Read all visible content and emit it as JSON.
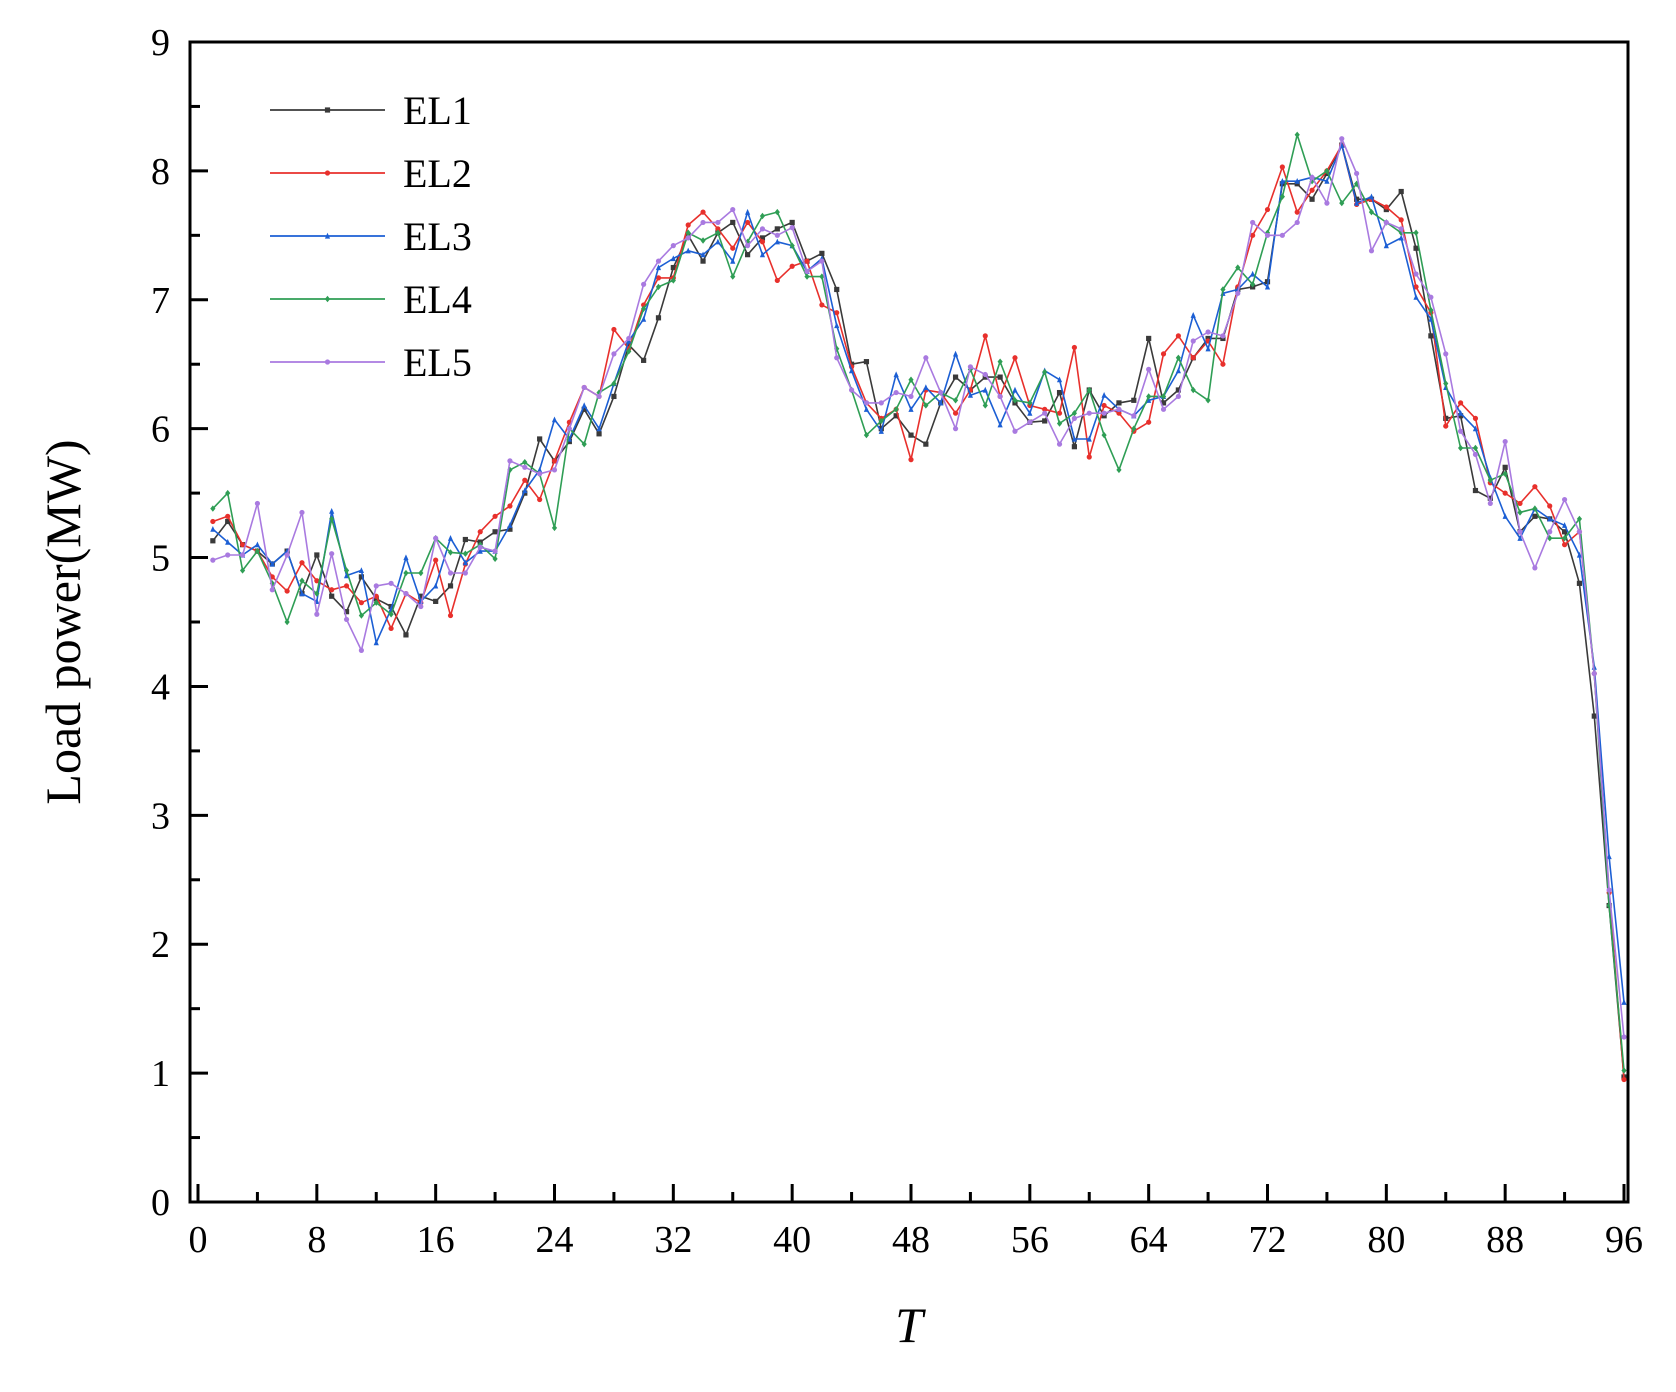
{
  "chart_data": {
    "type": "line",
    "title": "",
    "xlabel": "T",
    "ylabel": "Load power(MW)",
    "xlim": [
      0,
      96
    ],
    "ylim": [
      0,
      9
    ],
    "xticks": [
      0,
      8,
      16,
      24,
      32,
      40,
      48,
      56,
      64,
      72,
      80,
      88,
      96
    ],
    "yticks": [
      0,
      1,
      2,
      3,
      4,
      5,
      6,
      7,
      8,
      9
    ],
    "grid": false,
    "legend_position": "top-left",
    "x": [
      1,
      2,
      3,
      4,
      5,
      6,
      7,
      8,
      9,
      10,
      11,
      12,
      13,
      14,
      15,
      16,
      17,
      18,
      19,
      20,
      21,
      22,
      23,
      24,
      25,
      26,
      27,
      28,
      29,
      30,
      31,
      32,
      33,
      34,
      35,
      36,
      37,
      38,
      39,
      40,
      41,
      42,
      43,
      44,
      45,
      46,
      47,
      48,
      49,
      50,
      51,
      52,
      53,
      54,
      55,
      56,
      57,
      58,
      59,
      60,
      61,
      62,
      63,
      64,
      65,
      66,
      67,
      68,
      69,
      70,
      71,
      72,
      73,
      74,
      75,
      76,
      77,
      78,
      79,
      80,
      81,
      82,
      83,
      84,
      85,
      86,
      87,
      88,
      89,
      90,
      91,
      92,
      93,
      94,
      95,
      96
    ],
    "series": [
      {
        "name": "EL1",
        "color": "#3a3a3a",
        "marker": "square",
        "values": [
          5.13,
          5.28,
          5.1,
          5.05,
          4.95,
          5.05,
          4.72,
          5.02,
          4.7,
          4.58,
          4.85,
          4.68,
          4.62,
          4.4,
          4.7,
          4.66,
          4.78,
          5.14,
          5.12,
          5.2,
          5.22,
          5.5,
          5.92,
          5.75,
          5.9,
          6.15,
          5.96,
          6.25,
          6.65,
          6.53,
          6.86,
          7.25,
          7.5,
          7.3,
          7.52,
          7.6,
          7.35,
          7.48,
          7.55,
          7.6,
          7.3,
          7.36,
          7.08,
          6.5,
          6.52,
          6.0,
          6.1,
          5.95,
          5.88,
          6.2,
          6.4,
          6.3,
          6.4,
          6.4,
          6.2,
          6.05,
          6.06,
          6.28,
          5.86,
          6.3,
          6.1,
          6.2,
          6.22,
          6.7,
          6.2,
          6.3,
          6.55,
          6.7,
          6.7,
          7.08,
          7.1,
          7.14,
          7.9,
          7.9,
          7.78,
          7.98,
          8.2,
          7.78,
          7.78,
          7.7,
          7.84,
          7.4,
          6.72,
          6.08,
          6.1,
          5.52,
          5.46,
          5.7,
          5.2,
          5.32,
          5.3,
          5.2,
          4.8,
          3.77,
          2.3,
          0.97
        ]
      },
      {
        "name": "EL2",
        "color": "#e8302c",
        "marker": "circle",
        "values": [
          5.28,
          5.32,
          5.1,
          5.05,
          4.85,
          4.74,
          4.96,
          4.82,
          4.75,
          4.78,
          4.65,
          4.7,
          4.45,
          4.72,
          4.65,
          4.98,
          4.55,
          4.95,
          5.2,
          5.32,
          5.4,
          5.6,
          5.45,
          5.75,
          6.05,
          6.32,
          6.25,
          6.77,
          6.62,
          6.96,
          7.17,
          7.17,
          7.58,
          7.68,
          7.55,
          7.4,
          7.6,
          7.45,
          7.15,
          7.26,
          7.3,
          6.96,
          6.9,
          6.48,
          6.2,
          6.08,
          6.15,
          5.76,
          6.3,
          6.28,
          6.12,
          6.3,
          6.72,
          6.25,
          6.55,
          6.18,
          6.15,
          6.12,
          6.63,
          5.78,
          6.18,
          6.12,
          5.98,
          6.05,
          6.58,
          6.72,
          6.55,
          6.68,
          6.5,
          7.1,
          7.5,
          7.7,
          8.03,
          7.68,
          7.85,
          8.0,
          8.2,
          7.74,
          7.78,
          7.72,
          7.62,
          7.1,
          6.9,
          6.02,
          6.2,
          6.08,
          5.58,
          5.5,
          5.42,
          5.55,
          5.4,
          5.1,
          5.2,
          4.1,
          2.4,
          0.95
        ]
      },
      {
        "name": "EL3",
        "color": "#1c5fd4",
        "marker": "triangle",
        "values": [
          5.22,
          5.12,
          5.02,
          5.1,
          4.95,
          5.05,
          4.72,
          4.66,
          5.36,
          4.86,
          4.9,
          4.34,
          4.6,
          5.0,
          4.66,
          4.78,
          5.15,
          4.96,
          5.05,
          5.05,
          5.25,
          5.52,
          5.68,
          6.07,
          5.92,
          6.18,
          6.0,
          6.35,
          6.68,
          6.85,
          7.25,
          7.32,
          7.38,
          7.35,
          7.45,
          7.3,
          7.68,
          7.35,
          7.45,
          7.42,
          7.22,
          7.32,
          6.8,
          6.45,
          6.15,
          5.98,
          6.42,
          6.15,
          6.32,
          6.2,
          6.58,
          6.26,
          6.3,
          6.03,
          6.3,
          6.12,
          6.45,
          6.38,
          5.92,
          5.92,
          6.26,
          6.15,
          6.1,
          6.22,
          6.25,
          6.45,
          6.88,
          6.62,
          7.05,
          7.08,
          7.2,
          7.1,
          7.92,
          7.92,
          7.95,
          7.92,
          8.2,
          7.75,
          7.8,
          7.42,
          7.48,
          7.02,
          6.85,
          6.32,
          6.12,
          6.0,
          5.62,
          5.32,
          5.15,
          5.38,
          5.3,
          5.25,
          5.02,
          4.15,
          2.68,
          1.55
        ]
      },
      {
        "name": "EL4",
        "color": "#2f9e55",
        "marker": "diamond",
        "values": [
          5.38,
          5.5,
          4.9,
          5.05,
          4.8,
          4.5,
          4.82,
          4.72,
          5.3,
          4.9,
          4.55,
          4.65,
          4.56,
          4.88,
          4.88,
          5.15,
          5.04,
          5.03,
          5.1,
          4.99,
          5.68,
          5.74,
          5.65,
          5.23,
          6.0,
          5.88,
          6.28,
          6.35,
          6.6,
          6.93,
          7.1,
          7.15,
          7.52,
          7.46,
          7.52,
          7.18,
          7.45,
          7.65,
          7.68,
          7.42,
          7.18,
          7.18,
          6.62,
          6.3,
          5.95,
          6.06,
          6.15,
          6.38,
          6.18,
          6.28,
          6.22,
          6.46,
          6.18,
          6.52,
          6.22,
          6.2,
          6.44,
          6.04,
          6.12,
          6.3,
          5.95,
          5.68,
          6.0,
          6.25,
          6.25,
          6.55,
          6.3,
          6.22,
          7.08,
          7.25,
          7.12,
          7.52,
          7.8,
          8.28,
          7.92,
          8.0,
          7.75,
          7.9,
          7.68,
          7.6,
          7.52,
          7.52,
          6.92,
          6.35,
          5.85,
          5.85,
          5.6,
          5.65,
          5.35,
          5.38,
          5.15,
          5.15,
          5.3,
          4.1,
          2.3,
          1.02
        ]
      },
      {
        "name": "EL5",
        "color": "#a97ae0",
        "marker": "star",
        "values": [
          4.98,
          5.02,
          5.02,
          5.42,
          4.75,
          5.02,
          5.35,
          4.56,
          5.03,
          4.52,
          4.28,
          4.78,
          4.8,
          4.72,
          4.62,
          5.15,
          4.88,
          4.88,
          5.08,
          5.05,
          5.75,
          5.7,
          5.65,
          5.68,
          6.0,
          6.32,
          6.25,
          6.58,
          6.7,
          7.12,
          7.3,
          7.42,
          7.48,
          7.6,
          7.6,
          7.7,
          7.42,
          7.55,
          7.5,
          7.56,
          7.22,
          7.3,
          6.55,
          6.3,
          6.2,
          6.2,
          6.28,
          6.25,
          6.55,
          6.28,
          6.0,
          6.48,
          6.42,
          6.25,
          5.98,
          6.05,
          6.12,
          5.88,
          6.08,
          6.12,
          6.12,
          6.15,
          6.1,
          6.46,
          6.15,
          6.25,
          6.68,
          6.75,
          6.72,
          7.05,
          7.6,
          7.5,
          7.5,
          7.6,
          7.95,
          7.75,
          8.25,
          7.98,
          7.38,
          7.6,
          7.55,
          7.2,
          7.02,
          6.58,
          5.98,
          5.8,
          5.42,
          5.9,
          5.2,
          4.92,
          5.2,
          5.45,
          5.2,
          4.1,
          2.42,
          1.28
        ]
      }
    ]
  }
}
